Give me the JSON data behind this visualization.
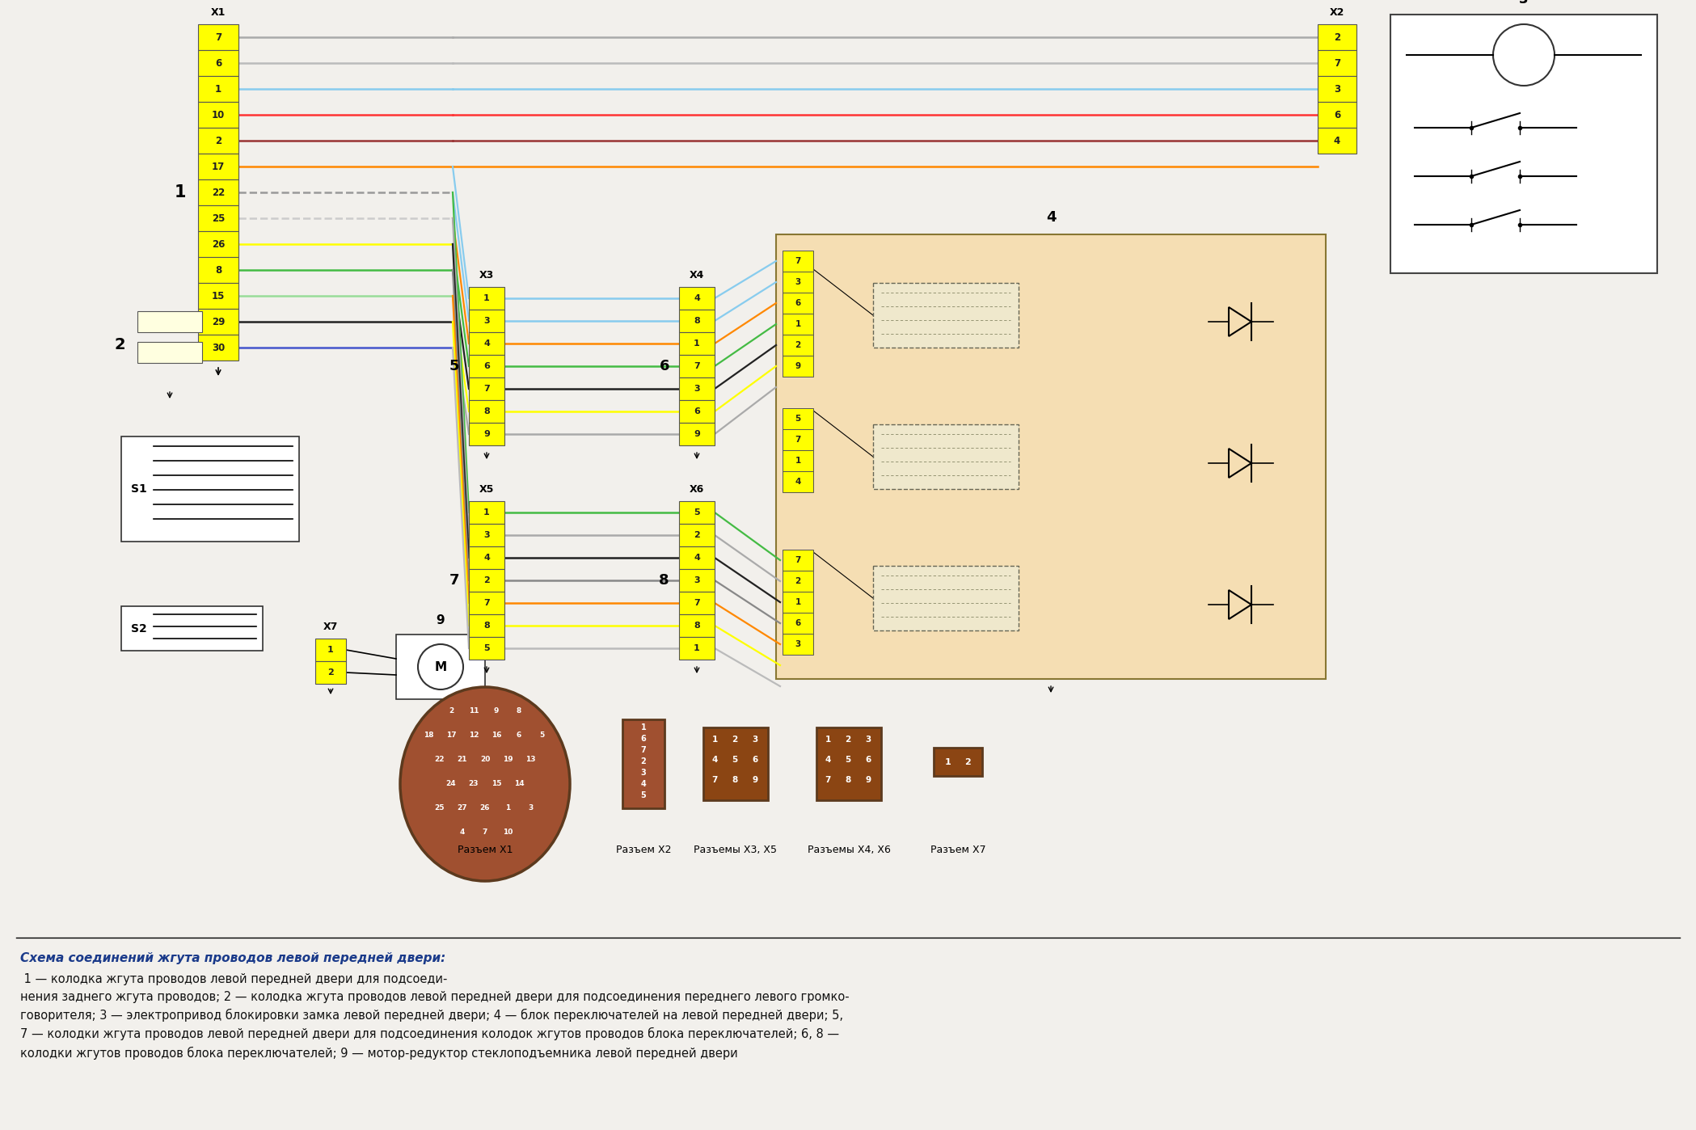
{
  "bg_color": "#f2f0ec",
  "box4_fill": "#f5deb3",
  "yellow_fill": "#ffff00",
  "yellow_fill2": "#ffffe0",
  "connector_X1_pins": [
    "7",
    "6",
    "1",
    "10",
    "2",
    "17",
    "22",
    "25",
    "26",
    "8",
    "15",
    "29",
    "30"
  ],
  "connector_X2_pins": [
    "2",
    "7",
    "3",
    "6",
    "4"
  ],
  "connector_X3_pins": [
    "1",
    "3",
    "4",
    "6",
    "7",
    "8",
    "9"
  ],
  "connector_X4_pins": [
    "4",
    "8",
    "1",
    "7",
    "3",
    "6",
    "9"
  ],
  "connector_X5_pins": [
    "1",
    "3",
    "4",
    "2",
    "7",
    "8",
    "5"
  ],
  "connector_X6_pins": [
    "5",
    "2",
    "4",
    "3",
    "7",
    "8",
    "1"
  ],
  "connector_X7_pins": [
    "1",
    "2"
  ],
  "wire_colors": [
    "#aaaaaa",
    "#bbbbbb",
    "#88ccee",
    "#ff3333",
    "#993333",
    "#ff8800",
    "#999999",
    "#cccccc",
    "#ffff00",
    "#44bb44",
    "#99dd99",
    "#222222",
    "#4455cc"
  ],
  "description_lines": [
    "Схема соединений жгута проводов левой передней двери:",
    "1 — колодка жгута проводов левой передней двери для подсоеди-нения заднего жгута проводов; 2 — колодка жгута проводов левой передней двери для подсоединения переднего левого громко-",
    "говорителя; 3 — электропривод блокировки замка левой передней двери; 4 — блок переключателей на левой передней двери; 5,",
    "7 — колодки жгута проводов левой передней двери для подсоединения колодок жгутов проводов блока переключателей; 6, 8 —",
    "колодки жгутов проводов блока переключателей; 9 — мотор-редуктор стеклоподъемника левой передней двери"
  ]
}
